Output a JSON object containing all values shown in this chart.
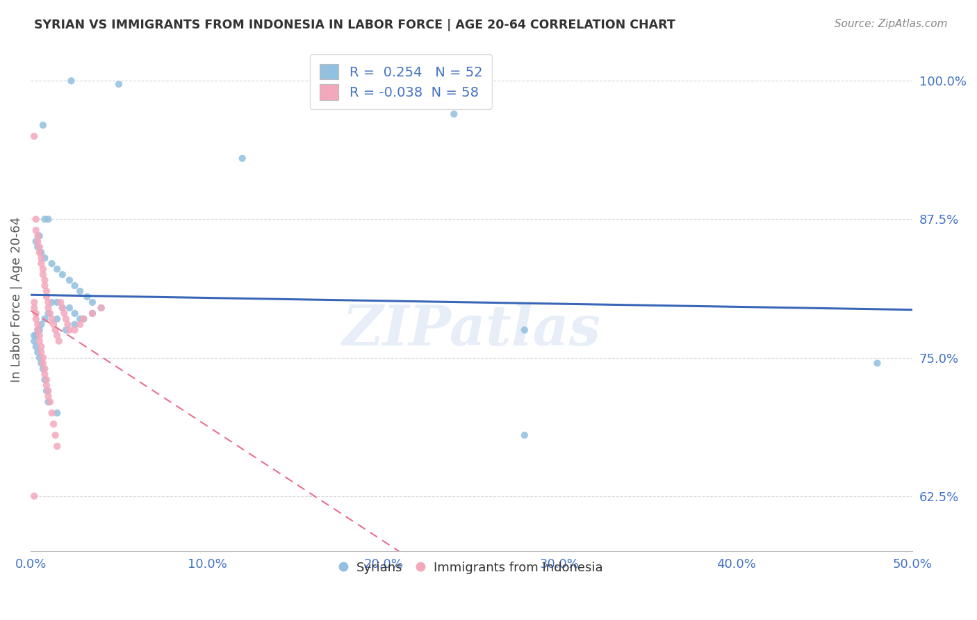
{
  "title": "SYRIAN VS IMMIGRANTS FROM INDONESIA IN LABOR FORCE | AGE 20-64 CORRELATION CHART",
  "source": "Source: ZipAtlas.com",
  "ylabel": "In Labor Force | Age 20-64",
  "xlim": [
    0.0,
    0.5
  ],
  "ylim": [
    0.575,
    1.03
  ],
  "yticks": [
    0.625,
    0.75,
    0.875,
    1.0
  ],
  "ytick_labels": [
    "62.5%",
    "75.0%",
    "87.5%",
    "100.0%"
  ],
  "xticks": [
    0.0,
    0.1,
    0.2,
    0.3,
    0.4,
    0.5
  ],
  "xtick_labels": [
    "0.0%",
    "10.0%",
    "20.0%",
    "30.0%",
    "40.0%",
    "50.0%"
  ],
  "blue_color": "#92C0E0",
  "pink_color": "#F4A8BC",
  "blue_line_color": "#3A66B8",
  "pink_line_color": "#E8708A",
  "R_blue": 0.254,
  "N_blue": 52,
  "R_pink": -0.038,
  "N_pink": 58,
  "legend_label_blue": "Syrians",
  "legend_label_pink": "Immigrants from Indonesia",
  "blue_x": [
    0.023,
    0.05,
    0.007,
    0.008,
    0.01,
    0.005,
    0.003,
    0.004,
    0.006,
    0.008,
    0.012,
    0.015,
    0.018,
    0.022,
    0.025,
    0.028,
    0.032,
    0.012,
    0.015,
    0.018,
    0.022,
    0.025,
    0.028,
    0.035,
    0.04,
    0.035,
    0.03,
    0.025,
    0.02,
    0.015,
    0.01,
    0.008,
    0.006,
    0.005,
    0.004,
    0.003,
    0.002,
    0.002,
    0.003,
    0.004,
    0.005,
    0.006,
    0.007,
    0.008,
    0.009,
    0.01,
    0.015,
    0.12,
    0.24,
    0.28,
    0.48,
    0.28
  ],
  "blue_y": [
    1.0,
    0.997,
    0.96,
    0.875,
    0.875,
    0.86,
    0.855,
    0.85,
    0.845,
    0.84,
    0.835,
    0.83,
    0.825,
    0.82,
    0.815,
    0.81,
    0.805,
    0.8,
    0.8,
    0.795,
    0.795,
    0.79,
    0.785,
    0.8,
    0.795,
    0.79,
    0.785,
    0.78,
    0.775,
    0.785,
    0.79,
    0.785,
    0.78,
    0.775,
    0.775,
    0.77,
    0.77,
    0.765,
    0.76,
    0.755,
    0.75,
    0.745,
    0.74,
    0.73,
    0.72,
    0.71,
    0.7,
    0.93,
    0.97,
    0.775,
    0.745,
    0.68
  ],
  "pink_x": [
    0.002,
    0.003,
    0.003,
    0.004,
    0.004,
    0.005,
    0.005,
    0.006,
    0.006,
    0.007,
    0.007,
    0.008,
    0.008,
    0.009,
    0.009,
    0.01,
    0.01,
    0.011,
    0.012,
    0.013,
    0.014,
    0.015,
    0.016,
    0.017,
    0.018,
    0.019,
    0.02,
    0.021,
    0.022,
    0.025,
    0.028,
    0.03,
    0.035,
    0.04,
    0.002,
    0.002,
    0.003,
    0.003,
    0.004,
    0.004,
    0.005,
    0.005,
    0.006,
    0.006,
    0.007,
    0.007,
    0.008,
    0.008,
    0.009,
    0.009,
    0.01,
    0.01,
    0.011,
    0.012,
    0.013,
    0.014,
    0.015,
    0.002
  ],
  "pink_y": [
    0.95,
    0.875,
    0.865,
    0.86,
    0.855,
    0.85,
    0.845,
    0.84,
    0.835,
    0.83,
    0.825,
    0.82,
    0.815,
    0.81,
    0.805,
    0.8,
    0.795,
    0.79,
    0.785,
    0.78,
    0.775,
    0.77,
    0.765,
    0.8,
    0.795,
    0.79,
    0.785,
    0.78,
    0.775,
    0.775,
    0.78,
    0.785,
    0.79,
    0.795,
    0.8,
    0.795,
    0.79,
    0.785,
    0.78,
    0.775,
    0.77,
    0.765,
    0.76,
    0.755,
    0.75,
    0.745,
    0.74,
    0.735,
    0.73,
    0.725,
    0.72,
    0.715,
    0.71,
    0.7,
    0.69,
    0.68,
    0.67,
    0.625
  ],
  "background_color": "#FFFFFF",
  "grid_color": "#CCCCCC",
  "title_color": "#333333",
  "axis_label_color": "#555555",
  "tick_color": "#4472C4",
  "source_color": "#888888",
  "watermark_text": "ZIPatlas",
  "watermark_color": "#B0C8E8",
  "watermark_alpha": 0.3
}
